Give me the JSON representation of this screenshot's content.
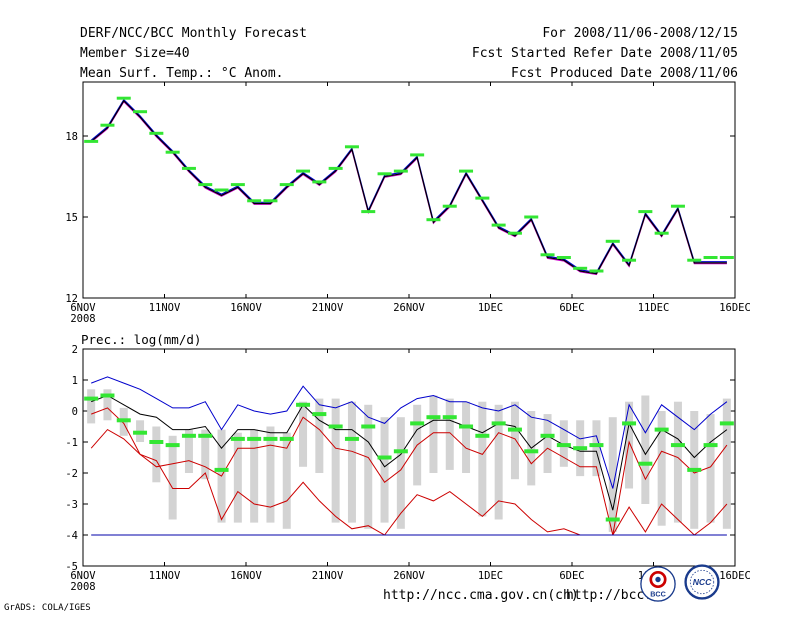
{
  "header": {
    "title": "DERF/NCC/BCC Monthly Forecast",
    "member": "Member Size=40",
    "variable": "Mean Surf. Temp.: °C Anom.",
    "period": "For 2008/11/06-2008/12/15",
    "start_date": "Fcst Started Refer Date 2008/11/05",
    "produced_date": "Fcst Produced Date 2008/11/06"
  },
  "footer": {
    "grads": "GrADS: COLA/IGES",
    "url1": "http://ncc.cma.gov.cn(ch)",
    "url2": "http://bcc.c",
    "logo1_text": "BCC",
    "logo2_text": "NCC"
  },
  "colors": {
    "ensemble_green": "#33e633",
    "gray_bar": "#d3d3d3",
    "upper_blue": "#0000cc",
    "lower_red": "#cc0000",
    "mean_black": "#000000",
    "floor_blue": "#0000aa"
  },
  "chart_data": [
    {
      "type": "line",
      "title": "Mean Surf. Temp.: °C Anom.",
      "xlabel": "",
      "ylabel": "",
      "x_tick_labels": [
        "6NOV",
        "11NOV",
        "16NOV",
        "21NOV",
        "26NOV",
        "1DEC",
        "6DEC",
        "11DEC",
        "16DEC"
      ],
      "x_tick_positions": [
        0,
        5,
        10,
        15,
        20,
        25,
        30,
        35,
        40
      ],
      "x_year_label": "2008",
      "y_ticks": [
        12,
        15,
        18
      ],
      "ylim": [
        12,
        20
      ],
      "xlim": [
        0,
        40
      ],
      "series": [
        {
          "name": "ensemble mean",
          "values": [
            17.8,
            18.3,
            19.3,
            18.7,
            18.0,
            17.4,
            16.7,
            16.1,
            15.8,
            16.1,
            15.5,
            15.5,
            16.1,
            16.6,
            16.2,
            16.7,
            17.5,
            15.2,
            16.5,
            16.6,
            17.2,
            14.8,
            15.4,
            16.6,
            15.6,
            14.6,
            14.3,
            14.9,
            13.5,
            13.4,
            13.0,
            12.9,
            14.0,
            13.2,
            15.1,
            14.3,
            15.3,
            13.3,
            13.3,
            13.3
          ],
          "colors": [
            "#0000cc",
            "#cc00cc",
            "#000000"
          ]
        },
        {
          "name": "control (green)",
          "values": [
            17.8,
            18.4,
            19.4,
            18.9,
            18.1,
            17.4,
            16.8,
            16.2,
            16.0,
            16.2,
            15.6,
            15.6,
            16.2,
            16.7,
            16.3,
            16.8,
            17.6,
            15.2,
            16.6,
            16.7,
            17.3,
            14.9,
            15.4,
            16.7,
            15.7,
            14.7,
            14.4,
            15.0,
            13.6,
            13.5,
            13.1,
            13.0,
            14.1,
            13.4,
            15.2,
            14.4,
            15.4,
            13.4,
            13.5,
            13.5
          ]
        }
      ]
    },
    {
      "type": "box",
      "title": "Prec.: log(mm/d)",
      "xlabel": "",
      "ylabel": "",
      "x_tick_labels": [
        "6NOV",
        "11NOV",
        "16NOV",
        "21NOV",
        "26NOV",
        "1DEC",
        "6DEC",
        "11DEC",
        "16DEC"
      ],
      "x_tick_positions": [
        0,
        5,
        10,
        15,
        20,
        25,
        30,
        35,
        40
      ],
      "x_year_label": "2008",
      "y_ticks": [
        -5,
        -4,
        -3,
        -2,
        -1,
        0,
        1,
        2
      ],
      "ylim": [
        -5,
        2
      ],
      "xlim": [
        0,
        40
      ],
      "box_low": [
        -0.4,
        -0.3,
        -0.8,
        -1.0,
        -2.3,
        -3.5,
        -2.0,
        -2.2,
        -3.6,
        -3.6,
        -3.6,
        -3.6,
        -3.8,
        -1.8,
        -2.0,
        -3.6,
        -3.6,
        -3.8,
        -3.6,
        -3.8,
        -2.4,
        -2.0,
        -1.9,
        -2.0,
        -3.4,
        -3.5,
        -2.2,
        -2.4,
        -2.0,
        -1.8,
        -2.1,
        -2.1,
        -3.9,
        -2.5,
        -3.0,
        -3.7,
        -3.6,
        -3.8,
        -3.6,
        -3.8
      ],
      "box_high": [
        0.7,
        0.7,
        0.1,
        -0.3,
        -0.5,
        -0.8,
        -0.6,
        -0.6,
        -0.6,
        -0.7,
        -0.6,
        -0.5,
        -0.7,
        0.3,
        0.4,
        0.4,
        0.3,
        0.2,
        -0.2,
        -0.2,
        0.2,
        0.5,
        0.4,
        0.3,
        0.3,
        0.2,
        0.3,
        0.0,
        -0.1,
        -0.3,
        -0.3,
        -0.3,
        -0.2,
        0.3,
        0.5,
        0.0,
        0.3,
        0.0,
        -0.1,
        0.4
      ],
      "series": [
        {
          "name": "upper bound",
          "color": "#0000cc",
          "values": [
            0.9,
            1.1,
            0.9,
            0.7,
            0.4,
            0.1,
            0.1,
            0.3,
            -0.6,
            0.2,
            0.0,
            -0.1,
            0.0,
            0.8,
            0.2,
            0.1,
            0.3,
            -0.2,
            -0.4,
            0.1,
            0.4,
            0.5,
            0.3,
            0.3,
            0.1,
            0.0,
            0.2,
            -0.2,
            -0.3,
            -0.6,
            -0.9,
            -0.8,
            -2.5,
            0.2,
            -0.7,
            0.2,
            -0.2,
            -0.6,
            -0.1,
            0.3
          ]
        },
        {
          "name": "ensemble mean",
          "color": "#000000",
          "values": [
            0.3,
            0.5,
            0.2,
            -0.1,
            -0.2,
            -0.6,
            -0.6,
            -0.5,
            -1.2,
            -0.6,
            -0.6,
            -0.7,
            -0.7,
            0.2,
            -0.3,
            -0.6,
            -0.6,
            -1.0,
            -1.8,
            -1.4,
            -0.6,
            -0.3,
            -0.3,
            -0.5,
            -0.7,
            -0.4,
            -0.5,
            -1.2,
            -0.8,
            -1.1,
            -1.3,
            -1.3,
            -3.2,
            -0.4,
            -1.4,
            -0.6,
            -0.9,
            -1.5,
            -1.0,
            -0.6
          ]
        },
        {
          "name": "lower bound",
          "color": "#cc0000",
          "values": [
            -1.2,
            -0.6,
            -0.9,
            -1.4,
            -1.8,
            -1.7,
            -1.6,
            -1.8,
            -2.1,
            -1.2,
            -1.2,
            -1.1,
            -1.2,
            -0.2,
            -0.6,
            -1.2,
            -1.3,
            -1.5,
            -2.3,
            -1.9,
            -1.1,
            -0.7,
            -0.7,
            -1.2,
            -1.4,
            -0.7,
            -0.9,
            -1.7,
            -1.2,
            -1.5,
            -1.8,
            -1.8,
            -4.0,
            -1.0,
            -2.2,
            -1.3,
            -1.5,
            -2.0,
            -1.8,
            -1.1
          ]
        },
        {
          "name": "lower envelope",
          "color": "#cc0000",
          "values": [
            -0.1,
            0.1,
            -0.4,
            -1.4,
            -1.6,
            -2.5,
            -2.5,
            -2.0,
            -3.5,
            -2.6,
            -3.0,
            -3.1,
            -2.9,
            -2.3,
            -2.9,
            -3.4,
            -3.8,
            -3.7,
            -4.0,
            -3.3,
            -2.7,
            -2.9,
            -2.6,
            -3.0,
            -3.4,
            -2.9,
            -3.0,
            -3.5,
            -3.9,
            -3.8,
            -4.0,
            -4.0,
            -4.0,
            -3.1,
            -3.9,
            -3.0,
            -3.5,
            -4.0,
            -3.6,
            -3.0
          ]
        },
        {
          "name": "floor",
          "color": "#0000aa",
          "values": [
            -4,
            -4,
            -4,
            -4,
            -4,
            -4,
            -4,
            -4,
            -4,
            -4,
            -4,
            -4,
            -4,
            -4,
            -4,
            -4,
            -4,
            -4,
            -4,
            -4,
            -4,
            -4,
            -4,
            -4,
            -4,
            -4,
            -4,
            -4,
            -4,
            -4,
            -4,
            -4,
            -4,
            -4,
            -4,
            -4,
            -4,
            -4,
            -4,
            -4
          ]
        },
        {
          "name": "control (green)",
          "color": "#33e633",
          "values": [
            0.4,
            0.5,
            -0.3,
            -0.7,
            -1.0,
            -1.1,
            -0.8,
            -0.8,
            -1.9,
            -0.9,
            -0.9,
            -0.9,
            -0.9,
            0.2,
            -0.1,
            -0.5,
            -0.9,
            -0.5,
            -1.5,
            -1.3,
            -0.4,
            -0.2,
            -0.2,
            -0.5,
            -0.8,
            -0.4,
            -0.6,
            -1.3,
            -0.8,
            -1.1,
            -1.2,
            -1.1,
            -3.5,
            -0.4,
            -1.7,
            -0.6,
            -1.1,
            -1.9,
            -1.1,
            -0.4
          ]
        }
      ]
    }
  ]
}
